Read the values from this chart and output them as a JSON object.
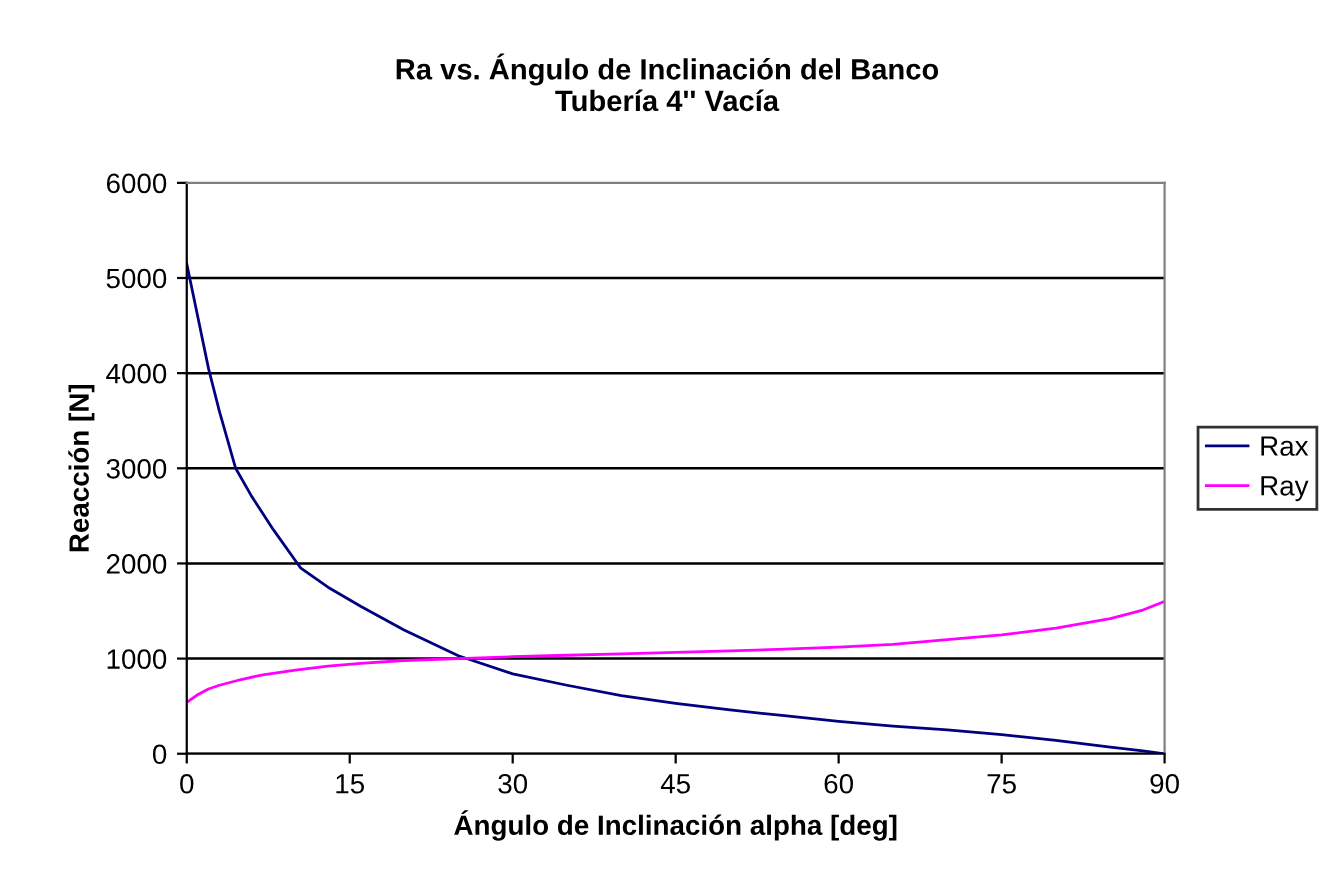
{
  "chart_data": {
    "type": "line",
    "title": "Ra vs. Ángulo de Inclinación del Banco\nTubería 4'' Vacía",
    "xlabel": "Ángulo de Inclinación alpha [deg]",
    "ylabel": "Reacción [N]",
    "xlim": [
      0,
      90
    ],
    "ylim": [
      0,
      6000
    ],
    "xticks": [
      0,
      15,
      30,
      45,
      60,
      75,
      90
    ],
    "yticks": [
      0,
      1000,
      2000,
      3000,
      4000,
      5000,
      6000
    ],
    "grid": "y",
    "legend": "right",
    "marker": "none",
    "line_style": "solid",
    "series": [
      {
        "name": "Rax",
        "color": "#000080",
        "x": [
          0,
          1,
          2,
          3,
          4.5,
          6,
          8,
          10.5,
          13,
          16,
          20,
          25,
          30,
          35,
          40,
          45,
          50,
          55,
          60,
          65,
          70,
          75,
          80,
          85,
          88,
          90
        ],
        "values": [
          5150,
          4600,
          4050,
          3600,
          3000,
          2700,
          2350,
          1950,
          1750,
          1550,
          1300,
          1030,
          840,
          720,
          610,
          530,
          460,
          400,
          340,
          290,
          250,
          200,
          140,
          70,
          30,
          0
        ]
      },
      {
        "name": "Ray",
        "color": "#ff00ff",
        "x": [
          0,
          1,
          2,
          3,
          5,
          7,
          10,
          13,
          16,
          20,
          25,
          30,
          35,
          40,
          45,
          50,
          55,
          60,
          65,
          70,
          75,
          80,
          85,
          88,
          90
        ],
        "values": [
          540,
          620,
          680,
          720,
          780,
          830,
          880,
          920,
          950,
          980,
          1000,
          1020,
          1035,
          1050,
          1065,
          1080,
          1100,
          1120,
          1150,
          1200,
          1250,
          1320,
          1420,
          1510,
          1600
        ]
      }
    ]
  }
}
